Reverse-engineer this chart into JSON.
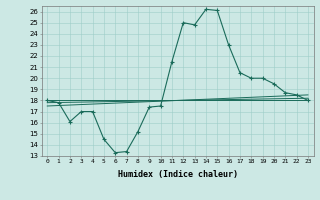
{
  "title": "",
  "xlabel": "Humidex (Indice chaleur)",
  "background_color": "#cce8e4",
  "line_color": "#1a6b5a",
  "xlim": [
    -0.5,
    23.5
  ],
  "ylim": [
    13,
    26.5
  ],
  "xticks": [
    0,
    1,
    2,
    3,
    4,
    5,
    6,
    7,
    8,
    9,
    10,
    11,
    12,
    13,
    14,
    15,
    16,
    17,
    18,
    19,
    20,
    21,
    22,
    23
  ],
  "yticks": [
    13,
    14,
    15,
    16,
    17,
    18,
    19,
    20,
    21,
    22,
    23,
    24,
    25,
    26
  ],
  "main_series": {
    "x": [
      0,
      1,
      2,
      3,
      4,
      5,
      6,
      7,
      8,
      9,
      10,
      11,
      12,
      13,
      14,
      15,
      16,
      17,
      18,
      19,
      20,
      21,
      22,
      23
    ],
    "y": [
      18,
      17.8,
      16.1,
      17.0,
      17.0,
      14.5,
      13.3,
      13.4,
      15.2,
      17.4,
      17.5,
      21.5,
      25.0,
      24.8,
      26.2,
      26.1,
      23.0,
      20.5,
      20.0,
      20.0,
      19.5,
      18.7,
      18.5,
      18.0
    ]
  },
  "flat_lines": [
    {
      "x": [
        0,
        23
      ],
      "y": [
        18.0,
        18.0
      ]
    },
    {
      "x": [
        0,
        23
      ],
      "y": [
        17.5,
        18.5
      ]
    },
    {
      "x": [
        0,
        23
      ],
      "y": [
        17.8,
        18.2
      ]
    }
  ]
}
